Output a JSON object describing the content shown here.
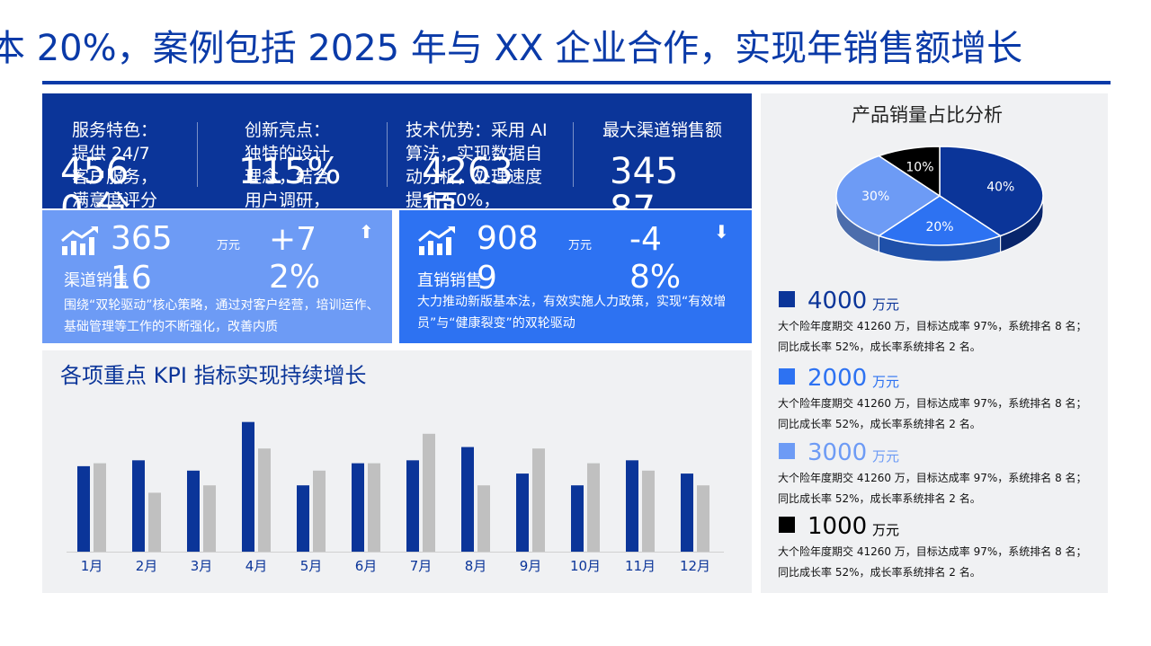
{
  "headline": "本 20%，案例包括 2025 年与 XX 企业合作，实现年销售额增长",
  "stats": [
    {
      "label": "服务特色：提供 24/7 客户服务，满意度评分",
      "value": "4560 分"
    },
    {
      "label": "创新亮点：独特的设计理念，结合用户调研，",
      "value": "115%"
    },
    {
      "label": "技术优势：采用 AI 算法，实现数据自动分析，处理速度提升 50%，",
      "value": "4263 项"
    },
    {
      "label": "最大渠道销售额",
      "value": "34587"
    }
  ],
  "cards": [
    {
      "value": "36516",
      "unit": "万元",
      "change": "+72%",
      "arrow": "up",
      "title": "渠道销售",
      "desc": "围绕“双轮驱动”核心策略，通过对客户经营，培训运作、基础管理等工作的不断强化，改善内质"
    },
    {
      "value": "9089",
      "unit": "万元",
      "change": "-48%",
      "arrow": "down",
      "title": "直销销售",
      "desc": "大力推动新版基本法，有效实施人力政策，实现“有效增员”与“健康裂变”的双轮驱动"
    }
  ],
  "kpi_title": "各项重点 KPI 指标实现持续增长",
  "colors": {
    "primary": "#0b3599",
    "secondary": "#c0c0c0",
    "blue2": "#2d72f2",
    "blue3": "#6d9bf5",
    "black": "#000000"
  },
  "chart_data": [
    {
      "type": "bar",
      "categories": [
        "1月",
        "2月",
        "3月",
        "4月",
        "5月",
        "6月",
        "7月",
        "8月",
        "9月",
        "10月",
        "11月",
        "12月"
      ],
      "series": [
        {
          "values": [
            58,
            62,
            55,
            88,
            45,
            60,
            62,
            71,
            53,
            45,
            62,
            53
          ],
          "color": "#0b3599"
        },
        {
          "values": [
            60,
            40,
            45,
            70,
            55,
            60,
            80,
            45,
            70,
            60,
            55,
            45
          ],
          "color": "#c0c0c0"
        }
      ],
      "ylim": [
        0,
        100
      ],
      "grid": false
    },
    {
      "type": "pie",
      "title": "产品销量占比分析",
      "slices": [
        {
          "label": "40%",
          "value": 40,
          "color": "#0b3599"
        },
        {
          "label": "20%",
          "value": 20,
          "color": "#2d72f2"
        },
        {
          "label": "30%",
          "value": 30,
          "color": "#6d9bf5"
        },
        {
          "label": "10%",
          "value": 10,
          "color": "#000000"
        }
      ]
    }
  ],
  "legend": [
    {
      "value": "4000",
      "unit": "万元",
      "color": "#0b3599",
      "desc": "大个险年度期交 41260 万，目标达成率 97%，系统排名 8 名；同比成长率 52%，成长率系统排名 2 名。"
    },
    {
      "value": "2000",
      "unit": "万元",
      "color": "#2d72f2",
      "desc": "大个险年度期交 41260 万，目标达成率 97%，系统排名 8 名；同比成长率 52%，成长率系统排名 2 名。"
    },
    {
      "value": "3000",
      "unit": "万元",
      "color": "#6d9bf5",
      "desc": "大个险年度期交 41260 万，目标达成率 97%，系统排名 8 名；同比成长率 52%，成长率系统排名 2 名。"
    },
    {
      "value": "1000",
      "unit": "万元",
      "color": "#000000",
      "desc": "大个险年度期交 41260 万，目标达成率 97%，系统排名 8 名；同比成长率 52%，成长率系统排名 2 名。"
    }
  ]
}
